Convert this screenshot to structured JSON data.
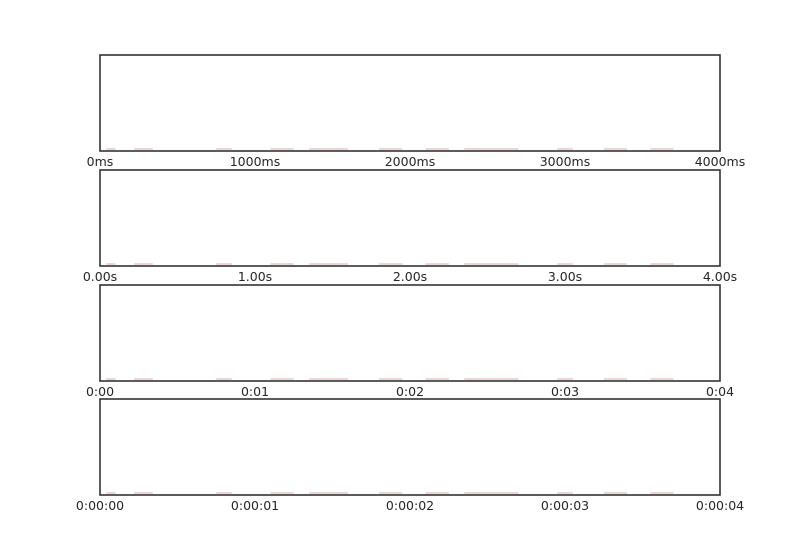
{
  "chart_data": [
    {
      "type": "heatmap",
      "xlim": [
        0,
        4
      ],
      "xunit": "s",
      "tick_labels": [
        "0ms",
        "1000ms",
        "2000ms",
        "3000ms",
        "4000ms"
      ],
      "grid": false
    },
    {
      "type": "heatmap",
      "xlim": [
        0,
        4
      ],
      "xunit": "s",
      "tick_labels": [
        "0.00s",
        "1.00s",
        "2.00s",
        "3.00s",
        "4.00s"
      ],
      "grid": false
    },
    {
      "type": "heatmap",
      "xlim": [
        0,
        4
      ],
      "xunit": "s",
      "tick_labels": [
        "0:00",
        "0:01",
        "0:02",
        "0:03",
        "0:04"
      ],
      "grid": false
    },
    {
      "type": "heatmap",
      "xlim": [
        0,
        4
      ],
      "xunit": "s",
      "tick_labels": [
        "0:00:00",
        "0:00:01",
        "0:00:02",
        "0:00:03",
        "0:00:04"
      ],
      "grid": false
    }
  ],
  "colors": {
    "frame": "#333333",
    "text": "#262626",
    "trace": "#c98a8a",
    "background": "#ffffff"
  }
}
